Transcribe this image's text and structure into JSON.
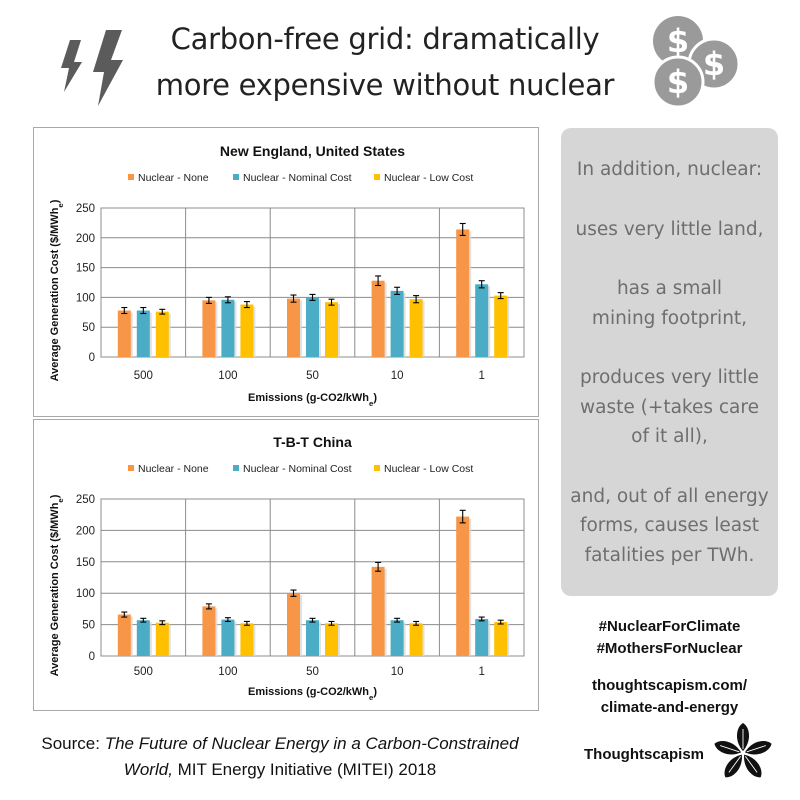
{
  "headline": {
    "line1": "Carbon-free grid: dramatically",
    "line2": "more expensive without nuclear"
  },
  "icons": {
    "left": "lightning-bolts-icon",
    "right": "dollar-coins-icon",
    "coin_symbol": "$",
    "brand": "black-flower-icon"
  },
  "colors": {
    "nuclear_none": "#f79646",
    "nominal_cost": "#4bacc6",
    "low_cost": "#ffc000",
    "sidebar_bg": "#d6d6d6",
    "sidebar_text": "#6e6e6e",
    "coin": "#9a9a9a",
    "bolt": "#5b5b5b"
  },
  "chart_data": [
    {
      "type": "bar",
      "title": "New England, United States",
      "xlabel": "Emissions (g-CO2/kWh",
      "xlabel_sub": "e",
      "xlabel_tail": ")",
      "ylabel": "Average Generation Cost ($/MWh",
      "ylabel_sub": "e",
      "ylabel_tail": ")",
      "ylim": [
        0,
        250
      ],
      "yticks": [
        "0",
        "50",
        "100",
        "150",
        "200",
        "250"
      ],
      "categories": [
        "500",
        "100",
        "50",
        "10",
        "1"
      ],
      "legend_position": "top",
      "grid": true,
      "series": [
        {
          "name": "Nuclear - None",
          "values": [
            78,
            95,
            98,
            128,
            214
          ],
          "errors": [
            5,
            5,
            6,
            8,
            10
          ]
        },
        {
          "name": "Nuclear - Nominal Cost",
          "values": [
            78,
            96,
            100,
            111,
            122
          ],
          "errors": [
            5,
            5,
            5,
            6,
            6
          ]
        },
        {
          "name": "Nuclear - Low Cost",
          "values": [
            76,
            88,
            92,
            97,
            103
          ],
          "errors": [
            4,
            5,
            5,
            6,
            5
          ]
        }
      ]
    },
    {
      "type": "bar",
      "title": "T-B-T China",
      "xlabel": "Emissions (g-CO2/kWh",
      "xlabel_sub": "e",
      "xlabel_tail": ")",
      "ylabel": "Average Generation Cost ($/MWh",
      "ylabel_sub": "e",
      "ylabel_tail": ")",
      "ylim": [
        0,
        250
      ],
      "yticks": [
        "0",
        "50",
        "100",
        "150",
        "200",
        "250"
      ],
      "categories": [
        "500",
        "100",
        "50",
        "10",
        "1"
      ],
      "legend_position": "top",
      "grid": true,
      "series": [
        {
          "name": "Nuclear - None",
          "values": [
            66,
            79,
            100,
            142,
            222
          ],
          "errors": [
            4,
            4,
            5,
            7,
            10
          ]
        },
        {
          "name": "Nuclear - Nominal Cost",
          "values": [
            57,
            58,
            57,
            57,
            59
          ],
          "errors": [
            3,
            3,
            3,
            3,
            3
          ]
        },
        {
          "name": "Nuclear - Low Cost",
          "values": [
            53,
            52,
            52,
            52,
            54
          ],
          "errors": [
            3,
            3,
            3,
            3,
            3
          ]
        }
      ]
    }
  ],
  "sidebar": {
    "paragraphs": [
      "In addition, nuclear:",
      "uses very little land,",
      "has a small\nmining footprint,",
      "produces very little\nwaste (+takes care\nof it all),",
      "and, out of all energy\nforms, causes least\nfatalities per TWh."
    ]
  },
  "hashtags": [
    "#NuclearForClimate",
    "#MothersForNuclear"
  ],
  "weblink": [
    "thoughtscapism.com/",
    "climate-and-energy"
  ],
  "brand": "Thoughtscapism",
  "source": {
    "prefix": "Source: ",
    "title": "The Future of Nuclear Energy in a Carbon-Constrained World,",
    "suffix": " MIT Energy Initiative (MITEI) 2018"
  }
}
